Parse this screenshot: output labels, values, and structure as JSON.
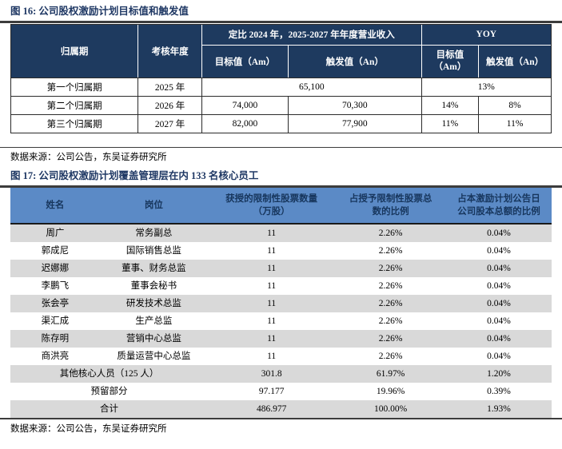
{
  "figure16": {
    "title": "图 16:  公司股权激励计划目标值和触发值",
    "source": "数据来源：公司公告，东吴证券研究所",
    "table": {
      "headers": {
        "period": "归属期",
        "year": "考核年度",
        "revenue_group": "定比 2024 年，2025-2027 年年度营业收入",
        "target_am": "目标值（Am）",
        "trigger_an": "触发值（An）",
        "yoy": "YOY",
        "yoy_target": "目标值\n（Am）",
        "yoy_trigger": "触发值（An）"
      },
      "rows": [
        {
          "period": "第一个归属期",
          "year": "2025 年",
          "merged_value": "65,100",
          "merged_yoy": "13%"
        },
        {
          "period": "第二个归属期",
          "year": "2026 年",
          "target": "74,000",
          "trigger": "70,300",
          "yoy_target": "14%",
          "yoy_trigger": "8%"
        },
        {
          "period": "第三个归属期",
          "year": "2027 年",
          "target": "82,000",
          "trigger": "77,900",
          "yoy_target": "11%",
          "yoy_trigger": "11%"
        }
      ]
    }
  },
  "figure17": {
    "title": "图 17:  公司股权激励计划覆盖管理层在内 133 名核心员工",
    "source": "数据来源：公司公告，东吴证券研究所",
    "table": {
      "headers": [
        "姓名",
        "岗位",
        "获授的限制性股票数量\n（万股）",
        "占授予限制性股票总\n数的比例",
        "占本激励计划公告日\n公司股本总额的比例"
      ],
      "rows": [
        {
          "name": "周广",
          "position": "常务副总",
          "shares": "11",
          "pct_granted": "2.26%",
          "pct_capital": "0.04%"
        },
        {
          "name": "郭成尼",
          "position": "国际销售总监",
          "shares": "11",
          "pct_granted": "2.26%",
          "pct_capital": "0.04%"
        },
        {
          "name": "迟娜娜",
          "position": "董事、财务总监",
          "shares": "11",
          "pct_granted": "2.26%",
          "pct_capital": "0.04%"
        },
        {
          "name": "李鹏飞",
          "position": "董事会秘书",
          "shares": "11",
          "pct_granted": "2.26%",
          "pct_capital": "0.04%"
        },
        {
          "name": "张会亭",
          "position": "研发技术总监",
          "shares": "11",
          "pct_granted": "2.26%",
          "pct_capital": "0.04%"
        },
        {
          "name": "渠汇成",
          "position": "生产总监",
          "shares": "11",
          "pct_granted": "2.26%",
          "pct_capital": "0.04%"
        },
        {
          "name": "陈存明",
          "position": "营销中心总监",
          "shares": "11",
          "pct_granted": "2.26%",
          "pct_capital": "0.04%"
        },
        {
          "name": "商洪亮",
          "position": "质量运营中心总监",
          "shares": "11",
          "pct_granted": "2.26%",
          "pct_capital": "0.04%"
        },
        {
          "name": "其他核心人员（125 人）",
          "shares": "301.8",
          "pct_granted": "61.97%",
          "pct_capital": "1.20%"
        },
        {
          "name": "预留部分",
          "shares": "97.177",
          "pct_granted": "19.96%",
          "pct_capital": "0.39%"
        },
        {
          "name": "合计",
          "shares": "486.977",
          "pct_granted": "100.00%",
          "pct_capital": "1.93%"
        }
      ]
    }
  },
  "colors": {
    "navy_header": "#1e3a5f",
    "blue_header": "#5b8ac6",
    "header_text": "#17365d",
    "stripe": "#d9d9d9",
    "rule": "#3c3c3c",
    "title": "#1f3864"
  }
}
